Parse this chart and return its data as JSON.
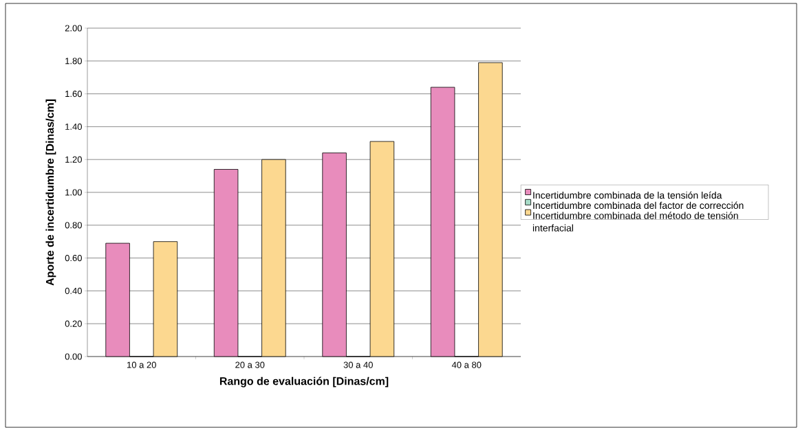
{
  "chart_data": {
    "type": "bar",
    "xlabel": "Rango de evaluación [Dinas/cm]",
    "ylabel": "Aporte de incertidumbre [Dinas/cm]",
    "categories": [
      "10 a 20",
      "20 a 30",
      "30 a 40",
      "40 a 80"
    ],
    "series": [
      {
        "name": "Incertidumbre combinada de la tensión leída",
        "color": "#e88cbc",
        "values": [
          0.69,
          1.14,
          1.24,
          1.64
        ]
      },
      {
        "name": "Incertidumbre combinada del factor de corrección",
        "color": "#a8dcc8",
        "values": [
          0,
          0,
          0,
          0
        ]
      },
      {
        "name": "Incertidumbre combinada del método de tensión interfacial",
        "color": "#fcd890",
        "values": [
          0.7,
          1.2,
          1.31,
          1.79
        ]
      }
    ],
    "ylim": [
      0,
      2
    ],
    "yticks": [
      {
        "value": 0,
        "label": "0.00"
      },
      {
        "value": 0.2,
        "label": "0.20"
      },
      {
        "value": 0.4,
        "label": "0.40"
      },
      {
        "value": 0.6,
        "label": "0.60"
      },
      {
        "value": 0.8,
        "label": "0.80"
      },
      {
        "value": 1.0,
        "label": "1.00"
      },
      {
        "value": 1.2,
        "label": "1.20"
      },
      {
        "value": 1.4,
        "label": "1.40"
      },
      {
        "value": 1.6,
        "label": "1.60"
      },
      {
        "value": 1.8,
        "label": "1.80"
      },
      {
        "value": 2.0,
        "label": "2.00"
      }
    ],
    "grid": "y",
    "legend": "right"
  }
}
